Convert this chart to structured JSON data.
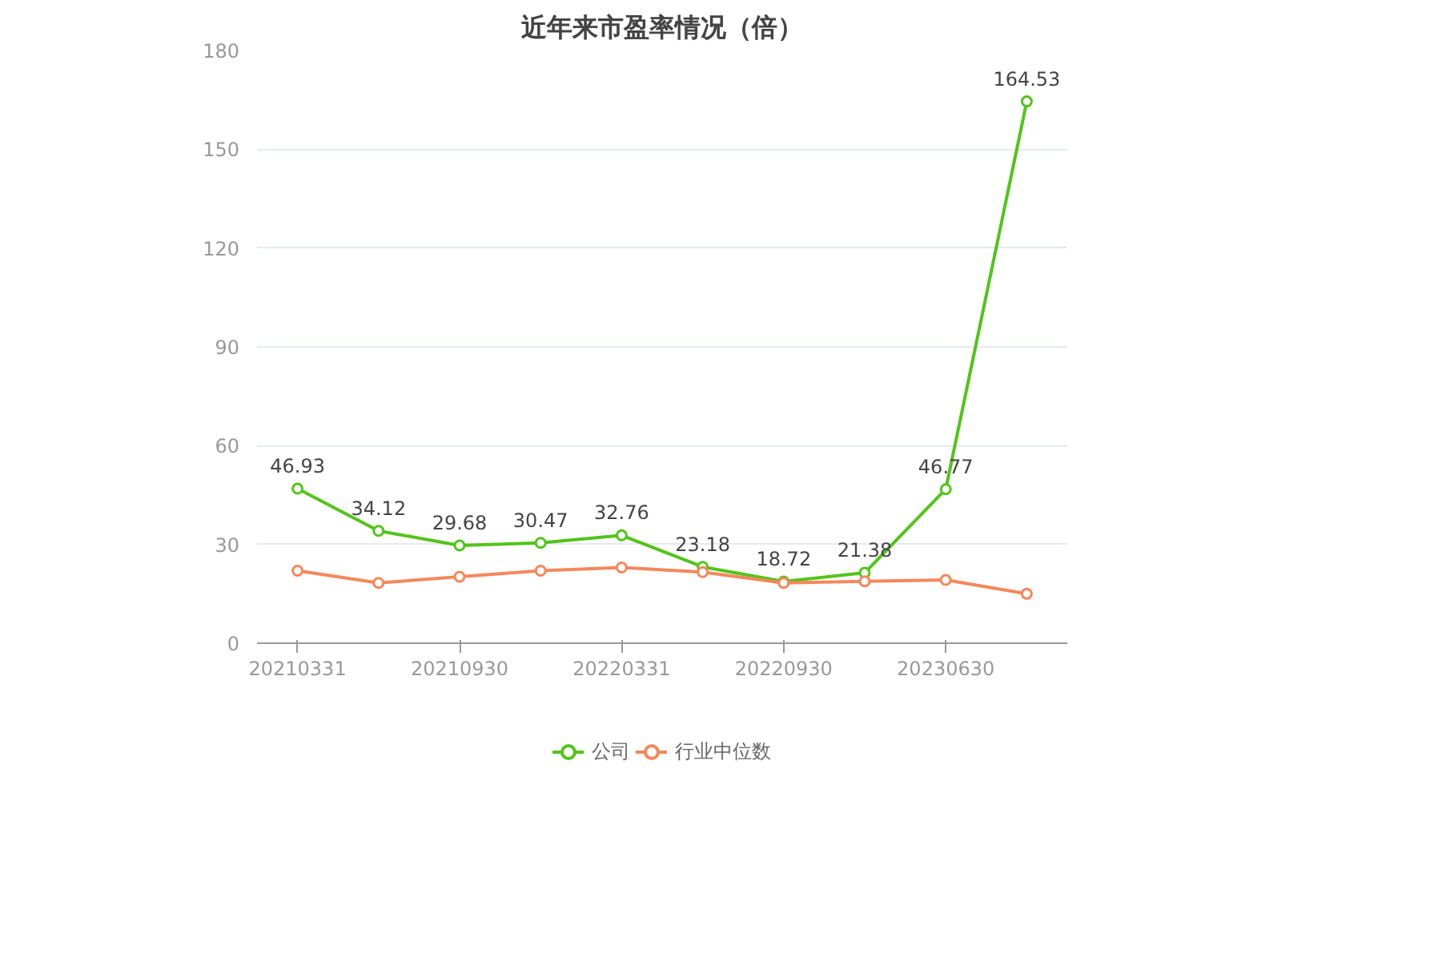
{
  "chart_data": {
    "type": "line",
    "title": "近年来市盈率情况（倍）",
    "categories": [
      "20210331",
      null,
      "20210930",
      null,
      "20220331",
      null,
      "20220930",
      null,
      "20230630",
      null
    ],
    "series": [
      {
        "name": "公司",
        "color": "#52c41a",
        "values": [
          46.93,
          34.12,
          29.68,
          30.47,
          32.76,
          23.18,
          18.72,
          21.38,
          46.77,
          164.53
        ],
        "value_labels": [
          "46.93",
          "34.12",
          "29.68",
          "30.47",
          "32.76",
          "23.18",
          "18.72",
          "21.38",
          "46.77",
          "164.53"
        ]
      },
      {
        "name": "行业中位数",
        "color": "#f5875a",
        "values": [
          22.0,
          18.3,
          20.2,
          22.0,
          23.0,
          21.6,
          18.3,
          18.8,
          19.2,
          15.0
        ]
      }
    ],
    "ylim": [
      0,
      180
    ],
    "yticks": [
      0,
      30,
      60,
      90,
      120,
      150,
      180
    ],
    "grid": "y",
    "legend": "bottom",
    "marker": "circle",
    "line_style": "solid"
  }
}
